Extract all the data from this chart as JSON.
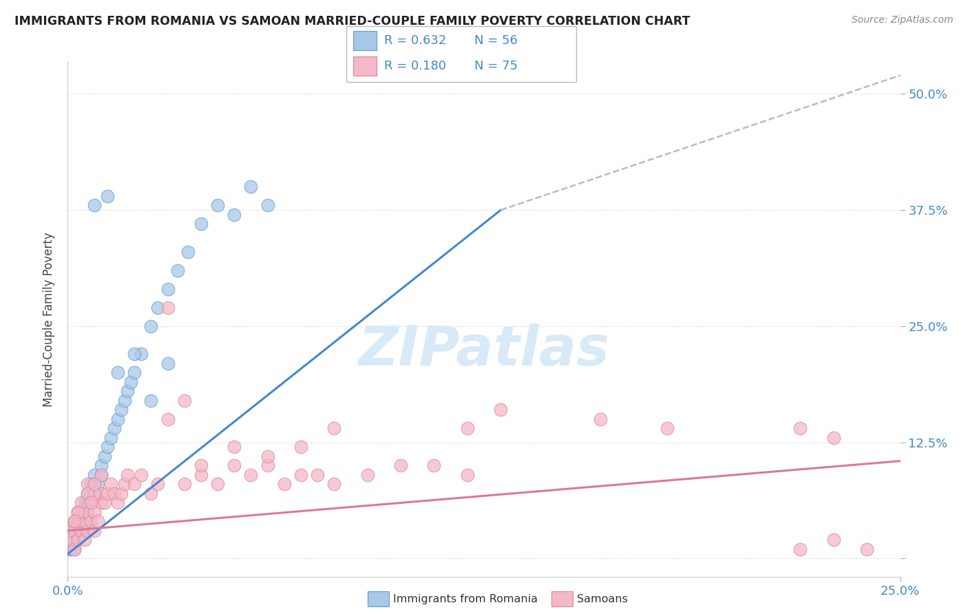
{
  "title": "IMMIGRANTS FROM ROMANIA VS SAMOAN MARRIED-COUPLE FAMILY POVERTY CORRELATION CHART",
  "source": "Source: ZipAtlas.com",
  "ylabel": "Married-Couple Family Poverty",
  "legend_r1": "R = 0.632",
  "legend_n1": "N = 56",
  "legend_r2": "R = 0.180",
  "legend_n2": "N = 75",
  "series1_color": "#a8c8e8",
  "series1_edge": "#5a9fd4",
  "series2_color": "#f4b8c8",
  "series2_edge": "#d88898",
  "trendline1_color": "#4488cc",
  "trendline2_color": "#dd7799",
  "dash_color": "#bbbbbb",
  "watermark_color": "#d8eaf8",
  "series1_name": "Immigrants from Romania",
  "series2_name": "Samoans",
  "xlim": [
    0.0,
    0.25
  ],
  "ylim": [
    -0.02,
    0.535
  ],
  "yticks": [
    0.0,
    0.125,
    0.25,
    0.375,
    0.5
  ],
  "ytick_labels": [
    "",
    "12.5%",
    "25.0%",
    "37.5%",
    "50.0%"
  ],
  "xtick_left": "0.0%",
  "xtick_right": "25.0%",
  "romania_x": [
    0.0005,
    0.001,
    0.001,
    0.001,
    0.002,
    0.002,
    0.002,
    0.002,
    0.003,
    0.003,
    0.003,
    0.003,
    0.004,
    0.004,
    0.004,
    0.005,
    0.005,
    0.005,
    0.006,
    0.006,
    0.006,
    0.007,
    0.007,
    0.008,
    0.008,
    0.008,
    0.009,
    0.01,
    0.01,
    0.011,
    0.012,
    0.013,
    0.014,
    0.015,
    0.016,
    0.017,
    0.018,
    0.019,
    0.02,
    0.022,
    0.025,
    0.027,
    0.03,
    0.033,
    0.036,
    0.04,
    0.045,
    0.05,
    0.055,
    0.06,
    0.012,
    0.015,
    0.02,
    0.025,
    0.03,
    0.008
  ],
  "romania_y": [
    0.01,
    0.02,
    0.01,
    0.03,
    0.01,
    0.02,
    0.03,
    0.04,
    0.02,
    0.03,
    0.04,
    0.05,
    0.03,
    0.04,
    0.05,
    0.03,
    0.05,
    0.06,
    0.04,
    0.06,
    0.07,
    0.06,
    0.08,
    0.07,
    0.08,
    0.09,
    0.08,
    0.09,
    0.1,
    0.11,
    0.12,
    0.13,
    0.14,
    0.15,
    0.16,
    0.17,
    0.18,
    0.19,
    0.2,
    0.22,
    0.25,
    0.27,
    0.29,
    0.31,
    0.33,
    0.36,
    0.38,
    0.37,
    0.4,
    0.38,
    0.39,
    0.2,
    0.22,
    0.17,
    0.21,
    0.38
  ],
  "samoan_x": [
    0.0005,
    0.001,
    0.001,
    0.002,
    0.002,
    0.002,
    0.003,
    0.003,
    0.003,
    0.004,
    0.004,
    0.005,
    0.005,
    0.005,
    0.006,
    0.006,
    0.007,
    0.007,
    0.008,
    0.008,
    0.009,
    0.01,
    0.01,
    0.011,
    0.012,
    0.013,
    0.014,
    0.015,
    0.016,
    0.017,
    0.018,
    0.02,
    0.022,
    0.025,
    0.027,
    0.03,
    0.035,
    0.04,
    0.045,
    0.05,
    0.055,
    0.06,
    0.065,
    0.07,
    0.075,
    0.08,
    0.09,
    0.1,
    0.11,
    0.12,
    0.03,
    0.035,
    0.04,
    0.05,
    0.06,
    0.07,
    0.08,
    0.12,
    0.13,
    0.16,
    0.18,
    0.22,
    0.23,
    0.24,
    0.22,
    0.23,
    0.006,
    0.008,
    0.01,
    0.004,
    0.003,
    0.002,
    0.006,
    0.007,
    0.008
  ],
  "samoan_y": [
    0.02,
    0.02,
    0.03,
    0.01,
    0.03,
    0.04,
    0.02,
    0.04,
    0.05,
    0.03,
    0.04,
    0.02,
    0.04,
    0.05,
    0.03,
    0.05,
    0.04,
    0.06,
    0.03,
    0.05,
    0.04,
    0.06,
    0.07,
    0.06,
    0.07,
    0.08,
    0.07,
    0.06,
    0.07,
    0.08,
    0.09,
    0.08,
    0.09,
    0.07,
    0.08,
    0.27,
    0.08,
    0.09,
    0.08,
    0.1,
    0.09,
    0.1,
    0.08,
    0.09,
    0.09,
    0.08,
    0.09,
    0.1,
    0.1,
    0.09,
    0.15,
    0.17,
    0.1,
    0.12,
    0.11,
    0.12,
    0.14,
    0.14,
    0.16,
    0.15,
    0.14,
    0.01,
    0.02,
    0.01,
    0.14,
    0.13,
    0.08,
    0.07,
    0.09,
    0.06,
    0.05,
    0.04,
    0.07,
    0.06,
    0.08
  ],
  "trendline1_x0": 0.0,
  "trendline1_y0": 0.005,
  "trendline1_x1": 0.13,
  "trendline1_y1": 0.375,
  "trendline1_xend": 0.25,
  "trendline1_yend": 0.52,
  "trendline2_x0": 0.0,
  "trendline2_y0": 0.03,
  "trendline2_x1": 0.25,
  "trendline2_y1": 0.105
}
